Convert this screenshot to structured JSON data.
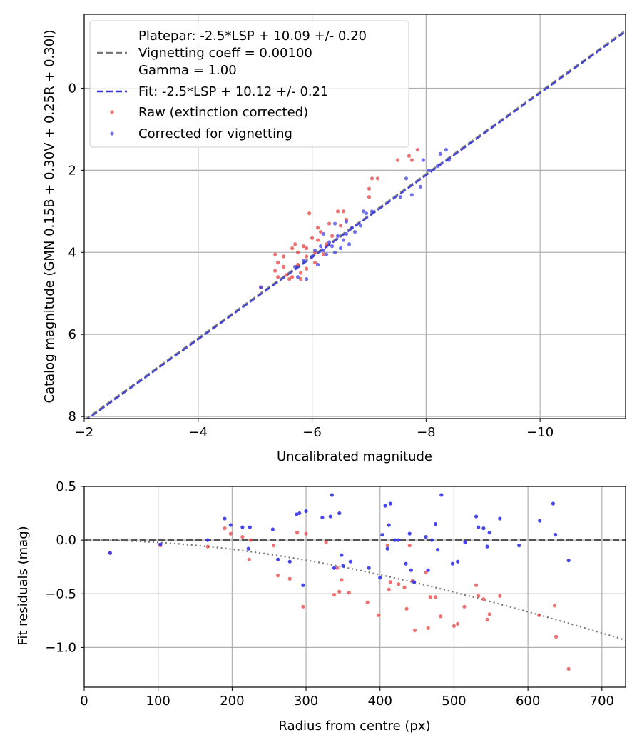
{
  "chart_data": [
    {
      "type": "scatter",
      "xlabel": "Uncalibrated magnitude",
      "ylabel": "Catalog magnitude (GMN 0.15B + 0.30V + 0.25R + 0.30I)",
      "xlim": [
        -2,
        -11.5
      ],
      "ylim": [
        8.05,
        -1.8
      ],
      "xticks": [
        -2,
        -4,
        -6,
        -8,
        -10
      ],
      "xtick_labels": [
        "−2",
        "−4",
        "−6",
        "−8",
        "−10"
      ],
      "yticks": [
        0,
        2,
        4,
        6,
        8
      ],
      "ytick_labels": [
        "0",
        "2",
        "4",
        "6",
        "8"
      ],
      "grid": true,
      "legend_position": "top-left",
      "legend": [
        {
          "label": "Platepar: -2.5*LSP + 10.09 +/- 0.20\nVignetting coeff = 0.00100\nGamma = 1.00",
          "style": "dashed",
          "color": "#777777"
        },
        {
          "label": "Fit: -2.5*LSP + 10.12 +/- 0.21",
          "style": "dashed",
          "color": "#3333dd"
        },
        {
          "label": "Raw (extinction corrected)",
          "style": "marker",
          "color": "#ee3333"
        },
        {
          "label": "Corrected for vignetting",
          "style": "marker",
          "color": "#3333ee"
        }
      ],
      "lines": [
        {
          "name": "Platepar",
          "slope": -2.5,
          "intercept": 10.09,
          "color": "#777777"
        },
        {
          "name": "Fit",
          "slope": -2.5,
          "intercept": 10.12,
          "color": "#3333dd"
        }
      ],
      "series": [
        {
          "name": "Raw (extinction corrected)",
          "color": "#ee3333",
          "points": [
            [
              -5.35,
              4.05
            ],
            [
              -5.4,
              4.25
            ],
            [
              -5.35,
              4.45
            ],
            [
              -5.4,
              4.6
            ],
            [
              -5.5,
              4.1
            ],
            [
              -5.5,
              4.35
            ],
            [
              -5.55,
              4.55
            ],
            [
              -5.6,
              4.65
            ],
            [
              -5.65,
              3.9
            ],
            [
              -5.7,
              3.8
            ],
            [
              -5.75,
              4.0
            ],
            [
              -5.75,
              4.3
            ],
            [
              -5.8,
              4.5
            ],
            [
              -5.8,
              4.65
            ],
            [
              -5.85,
              3.85
            ],
            [
              -5.9,
              4.1
            ],
            [
              -5.9,
              4.4
            ],
            [
              -5.95,
              3.05
            ],
            [
              -6.0,
              3.65
            ],
            [
              -6.05,
              4.0
            ],
            [
              -6.05,
              4.25
            ],
            [
              -6.1,
              3.4
            ],
            [
              -6.1,
              3.7
            ],
            [
              -6.15,
              3.5
            ],
            [
              -6.2,
              4.05
            ],
            [
              -6.25,
              3.8
            ],
            [
              -6.3,
              3.3
            ],
            [
              -6.35,
              3.6
            ],
            [
              -6.45,
              3.0
            ],
            [
              -6.5,
              3.35
            ],
            [
              -6.55,
              3.0
            ],
            [
              -6.6,
              3.2
            ],
            [
              -7.0,
              2.45
            ],
            [
              -7.05,
              2.2
            ],
            [
              -7.0,
              2.65
            ],
            [
              -7.15,
              2.2
            ],
            [
              -7.5,
              1.75
            ],
            [
              -7.7,
              1.65
            ],
            [
              -7.75,
              1.75
            ],
            [
              -7.85,
              1.5
            ],
            [
              -5.1,
              4.85
            ],
            [
              -5.65,
              4.6
            ],
            [
              -5.9,
              3.9
            ]
          ]
        },
        {
          "name": "Corrected for vignetting",
          "color": "#3333ee",
          "points": [
            [
              -5.1,
              4.85
            ],
            [
              -5.7,
              4.35
            ],
            [
              -5.75,
              4.6
            ],
            [
              -5.85,
              4.2
            ],
            [
              -5.9,
              4.65
            ],
            [
              -6.0,
              4.1
            ],
            [
              -6.05,
              3.95
            ],
            [
              -6.1,
              4.3
            ],
            [
              -6.15,
              3.85
            ],
            [
              -6.2,
              3.95
            ],
            [
              -6.25,
              4.05
            ],
            [
              -6.3,
              3.75
            ],
            [
              -6.35,
              3.85
            ],
            [
              -6.4,
              4.0
            ],
            [
              -6.45,
              3.6
            ],
            [
              -6.5,
              3.9
            ],
            [
              -6.55,
              3.7
            ],
            [
              -6.6,
              3.55
            ],
            [
              -6.65,
              3.8
            ],
            [
              -6.7,
              3.4
            ],
            [
              -6.75,
              3.5
            ],
            [
              -6.85,
              3.35
            ],
            [
              -6.9,
              3.0
            ],
            [
              -6.95,
              3.05
            ],
            [
              -7.05,
              3.0
            ],
            [
              -7.55,
              2.65
            ],
            [
              -7.65,
              2.2
            ],
            [
              -7.75,
              2.6
            ],
            [
              -7.9,
              2.4
            ],
            [
              -7.95,
              1.75
            ],
            [
              -8.05,
              2.0
            ],
            [
              -8.2,
              1.9
            ],
            [
              -8.25,
              1.6
            ],
            [
              -8.35,
              1.5
            ],
            [
              -8.4,
              1.75
            ],
            [
              -6.2,
              3.55
            ],
            [
              -6.4,
              3.3
            ],
            [
              -6.6,
              3.25
            ]
          ]
        }
      ]
    },
    {
      "type": "scatter",
      "xlabel": "Radius from centre (px)",
      "ylabel": "Fit residuals (mag)",
      "xlim": [
        0,
        732
      ],
      "ylim": [
        -1.37,
        0.5
      ],
      "xticks": [
        0,
        100,
        200,
        300,
        400,
        500,
        600,
        700
      ],
      "xtick_labels": [
        "0",
        "100",
        "200",
        "300",
        "400",
        "500",
        "600",
        "700"
      ],
      "yticks": [
        0.5,
        0.0,
        -0.5,
        -1.0
      ],
      "ytick_labels": [
        "0.5",
        "0.0",
        "−0.5",
        "−1.0"
      ],
      "grid": true,
      "reference_line": {
        "y": 0.0,
        "style": "dashed",
        "color": "#555555"
      },
      "vignetting_curve": {
        "coeff": 0.001,
        "style": "dotted",
        "color": "#777777"
      },
      "series": [
        {
          "name": "Raw (extinction corrected)",
          "color": "#ee3333",
          "points": [
            [
              35,
              -0.12
            ],
            [
              103,
              -0.05
            ],
            [
              167,
              -0.06
            ],
            [
              190,
              0.11
            ],
            [
              198,
              0.06
            ],
            [
              214,
              0.03
            ],
            [
              223,
              -0.18
            ],
            [
              225,
              0.0
            ],
            [
              256,
              -0.05
            ],
            [
              262,
              -0.33
            ],
            [
              278,
              -0.36
            ],
            [
              296,
              -0.62
            ],
            [
              288,
              0.07
            ],
            [
              300,
              0.06
            ],
            [
              327,
              -0.02
            ],
            [
              338,
              -0.51
            ],
            [
              342,
              -0.26
            ],
            [
              345,
              -0.48
            ],
            [
              348,
              -0.37
            ],
            [
              358,
              -0.49
            ],
            [
              383,
              -0.58
            ],
            [
              398,
              -0.7
            ],
            [
              410,
              -0.05
            ],
            [
              412,
              -0.46
            ],
            [
              414,
              -0.39
            ],
            [
              425,
              -0.41
            ],
            [
              433,
              -0.44
            ],
            [
              436,
              -0.64
            ],
            [
              440,
              -0.05
            ],
            [
              444,
              -0.38
            ],
            [
              447,
              -0.84
            ],
            [
              462,
              -0.3
            ],
            [
              465,
              -0.82
            ],
            [
              468,
              -0.53
            ],
            [
              475,
              -0.53
            ],
            [
              482,
              -0.71
            ],
            [
              500,
              -0.8
            ],
            [
              505,
              -0.78
            ],
            [
              514,
              -0.62
            ],
            [
              530,
              -0.42
            ],
            [
              533,
              -0.52
            ],
            [
              540,
              -0.55
            ],
            [
              545,
              -0.74
            ],
            [
              548,
              -0.69
            ],
            [
              562,
              -0.52
            ],
            [
              615,
              -0.7
            ],
            [
              636,
              -0.61
            ],
            [
              638,
              -0.9
            ],
            [
              655,
              -1.2
            ]
          ]
        },
        {
          "name": "Corrected for vignetting",
          "color": "#3333ee",
          "points": [
            [
              35,
              -0.12
            ],
            [
              103,
              -0.04
            ],
            [
              167,
              0.0
            ],
            [
              190,
              0.2
            ],
            [
              198,
              0.14
            ],
            [
              214,
              0.12
            ],
            [
              222,
              -0.08
            ],
            [
              224,
              0.12
            ],
            [
              255,
              0.1
            ],
            [
              262,
              -0.18
            ],
            [
              278,
              -0.2
            ],
            [
              287,
              0.24
            ],
            [
              291,
              0.25
            ],
            [
              296,
              -0.42
            ],
            [
              300,
              0.27
            ],
            [
              322,
              0.21
            ],
            [
              333,
              0.22
            ],
            [
              335,
              0.42
            ],
            [
              338,
              -0.26
            ],
            [
              345,
              0.25
            ],
            [
              350,
              -0.24
            ],
            [
              348,
              -0.14
            ],
            [
              360,
              -0.2
            ],
            [
              385,
              -0.26
            ],
            [
              400,
              -0.35
            ],
            [
              403,
              0.05
            ],
            [
              407,
              0.32
            ],
            [
              410,
              -0.08
            ],
            [
              414,
              0.34
            ],
            [
              412,
              0.14
            ],
            [
              420,
              0.0
            ],
            [
              425,
              0.0
            ],
            [
              435,
              -0.22
            ],
            [
              440,
              0.06
            ],
            [
              442,
              -0.28
            ],
            [
              446,
              -0.39
            ],
            [
              462,
              0.03
            ],
            [
              465,
              -0.28
            ],
            [
              470,
              0.0
            ],
            [
              475,
              0.15
            ],
            [
              478,
              -0.09
            ],
            [
              483,
              0.42
            ],
            [
              498,
              -0.22
            ],
            [
              505,
              -0.2
            ],
            [
              515,
              -0.02
            ],
            [
              530,
              0.22
            ],
            [
              533,
              0.12
            ],
            [
              540,
              0.11
            ],
            [
              545,
              -0.06
            ],
            [
              548,
              0.07
            ],
            [
              562,
              0.2
            ],
            [
              588,
              -0.05
            ],
            [
              616,
              0.18
            ],
            [
              634,
              0.34
            ],
            [
              637,
              0.05
            ],
            [
              655,
              -0.19
            ]
          ]
        }
      ]
    }
  ]
}
